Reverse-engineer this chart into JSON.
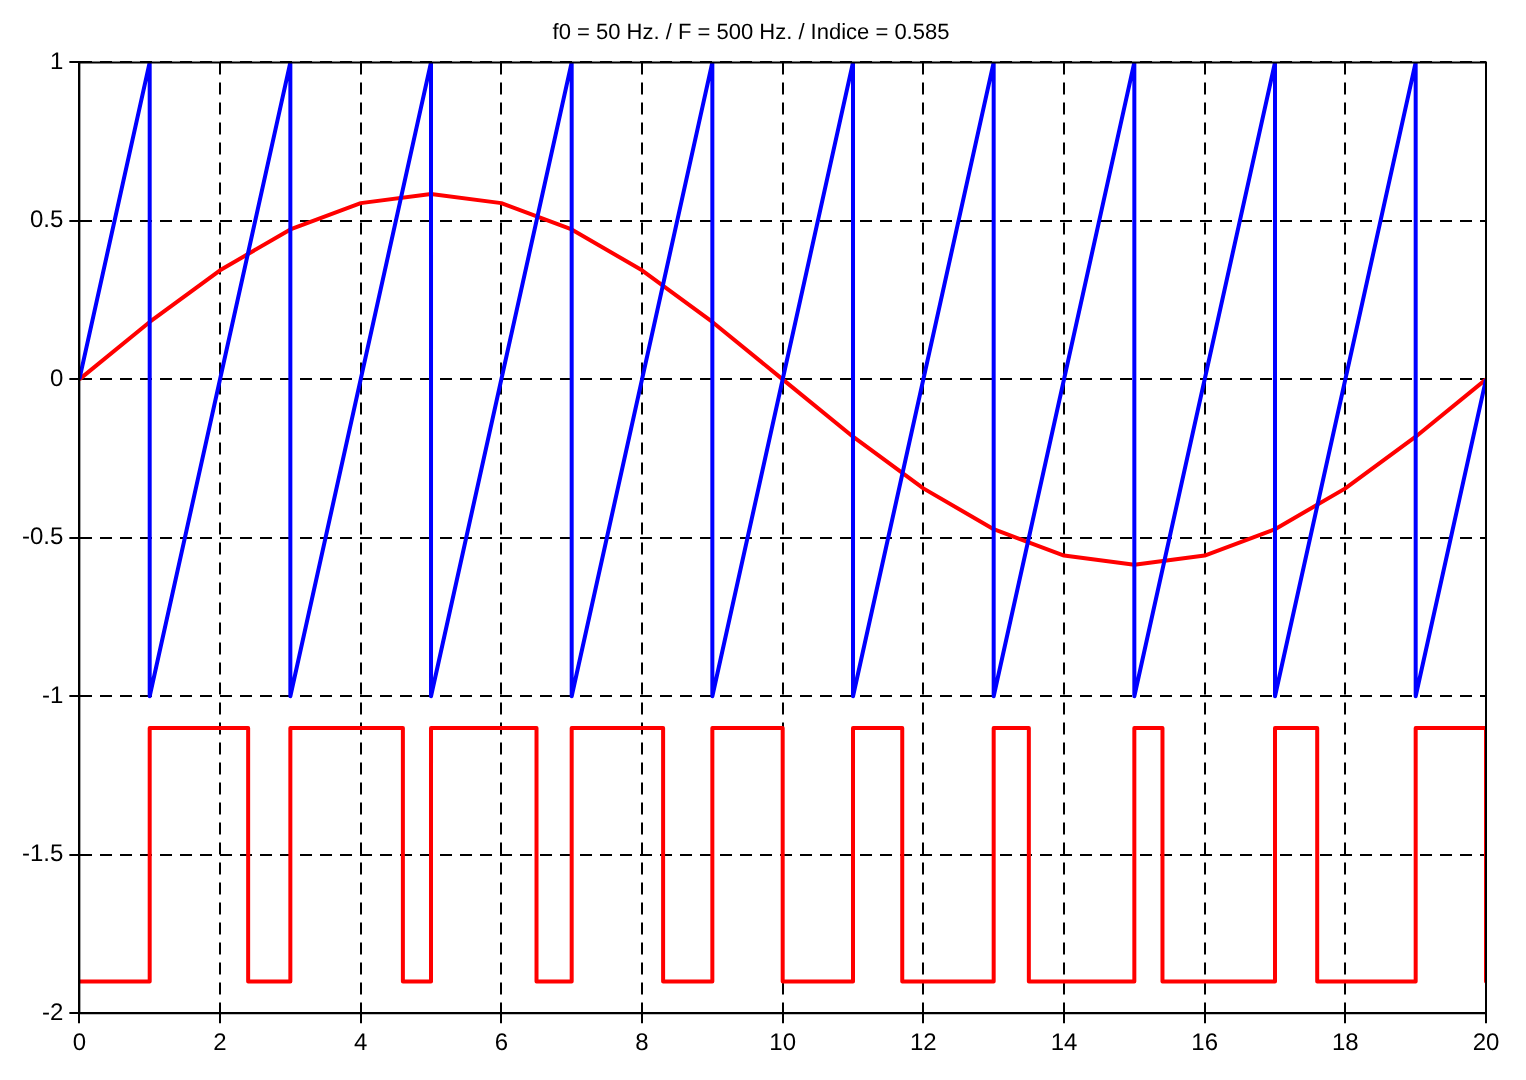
{
  "chart_data": {
    "type": "line",
    "title": "f0 = 50 Hz. / F = 500 Hz. / Indice = 0.585",
    "xlim": [
      0,
      20
    ],
    "xticks": [
      0,
      2,
      4,
      6,
      8,
      10,
      12,
      14,
      16,
      18,
      20
    ],
    "ylim": [
      -2,
      1
    ],
    "yticks": [
      -2,
      -1.5,
      -1,
      -0.5,
      0,
      0.5,
      1
    ],
    "grid": true,
    "legend": false,
    "marker": "none",
    "line_style": "solid",
    "series": [
      {
        "color": "#0000ff",
        "x": [
          0,
          1,
          1,
          3,
          3,
          5,
          5,
          7,
          7,
          9,
          9,
          11,
          11,
          13,
          13,
          15,
          15,
          17,
          17,
          19,
          19,
          20
        ],
        "values": [
          0,
          1,
          -1,
          1,
          -1,
          1,
          -1,
          1,
          -1,
          1,
          -1,
          1,
          -1,
          1,
          -1,
          1,
          -1,
          1,
          -1,
          1,
          -1,
          0
        ]
      },
      {
        "color": "#ff0000",
        "x": [
          0,
          1,
          2,
          3,
          4,
          5,
          6,
          7,
          8,
          9,
          10,
          11,
          12,
          13,
          14,
          15,
          16,
          17,
          18,
          19,
          20
        ],
        "values": [
          0,
          0.181,
          0.344,
          0.473,
          0.556,
          0.585,
          0.556,
          0.473,
          0.344,
          0.181,
          0,
          -0.181,
          -0.344,
          -0.473,
          -0.556,
          -0.585,
          -0.556,
          -0.473,
          -0.344,
          -0.181,
          0
        ]
      },
      {
        "color": "#ff0000",
        "x": [
          0,
          1,
          1,
          2.4,
          2.4,
          3,
          3,
          4.6,
          4.6,
          5,
          5,
          6.5,
          6.5,
          7,
          7,
          8.3,
          8.3,
          9,
          9,
          10,
          10,
          11,
          11,
          11.7,
          11.7,
          13,
          13,
          13.5,
          13.5,
          15,
          15,
          15.4,
          15.4,
          17,
          17,
          17.6,
          17.6,
          19,
          19,
          20,
          20
        ],
        "values": [
          -1.9,
          -1.9,
          -1.1,
          -1.1,
          -1.9,
          -1.9,
          -1.1,
          -1.1,
          -1.9,
          -1.9,
          -1.1,
          -1.1,
          -1.9,
          -1.9,
          -1.1,
          -1.1,
          -1.9,
          -1.9,
          -1.1,
          -1.1,
          -1.9,
          -1.9,
          -1.1,
          -1.1,
          -1.9,
          -1.9,
          -1.1,
          -1.1,
          -1.9,
          -1.9,
          -1.1,
          -1.1,
          -1.9,
          -1.9,
          -1.1,
          -1.1,
          -1.9,
          -1.9,
          -1.1,
          -1.1,
          -1.9
        ]
      }
    ]
  }
}
